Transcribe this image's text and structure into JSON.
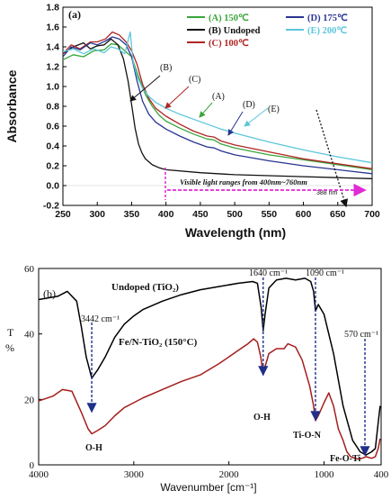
{
  "colors": {
    "A": "#3aa53a",
    "B": "#111111",
    "C": "#b02525",
    "D": "#2a3590",
    "E": "#5cc6dc",
    "undoped": "#000000",
    "fen": "#a51d1d",
    "marker": "#1f2f8a",
    "visible": "#e02ad5"
  },
  "chart_data": [
    {
      "type": "line",
      "panel_label": "(a)",
      "xlabel": "Wavelength (nm)",
      "ylabel": "Absorbance",
      "xlim": [
        250,
        700
      ],
      "ylim": [
        -0.2,
        1.8
      ],
      "xticks": [
        "250",
        "300",
        "350",
        "400",
        "450",
        "500",
        "550",
        "600",
        "650",
        "700"
      ],
      "yticks": [
        "-0.2",
        "0.0",
        "0.2",
        "0.4",
        "0.6",
        "0.8",
        "1.0",
        "1.2",
        "1.4",
        "1.6",
        "1.8"
      ],
      "legend_placement": "top-right",
      "series": [
        {
          "name": "(A) 150℃",
          "key": "A",
          "points": [
            [
              250,
              1.27
            ],
            [
              265,
              1.32
            ],
            [
              280,
              1.3
            ],
            [
              295,
              1.36
            ],
            [
              310,
              1.37
            ],
            [
              320,
              1.43
            ],
            [
              330,
              1.42
            ],
            [
              340,
              1.36
            ],
            [
              350,
              1.3
            ],
            [
              360,
              1.1
            ],
            [
              370,
              0.92
            ],
            [
              380,
              0.8
            ],
            [
              390,
              0.71
            ],
            [
              400,
              0.65
            ],
            [
              420,
              0.58
            ],
            [
              440,
              0.52
            ],
            [
              460,
              0.47
            ],
            [
              470,
              0.46
            ],
            [
              480,
              0.42
            ],
            [
              500,
              0.38
            ],
            [
              550,
              0.31
            ],
            [
              600,
              0.26
            ],
            [
              650,
              0.21
            ],
            [
              700,
              0.16
            ]
          ]
        },
        {
          "name": "(B) Undoped",
          "key": "B",
          "points": [
            [
              250,
              1.33
            ],
            [
              265,
              1.4
            ],
            [
              280,
              1.44
            ],
            [
              290,
              1.38
            ],
            [
              300,
              1.41
            ],
            [
              310,
              1.42
            ],
            [
              320,
              1.48
            ],
            [
              330,
              1.42
            ],
            [
              338,
              1.28
            ],
            [
              345,
              1.05
            ],
            [
              350,
              0.82
            ],
            [
              355,
              0.58
            ],
            [
              360,
              0.42
            ],
            [
              365,
              0.33
            ],
            [
              370,
              0.27
            ],
            [
              380,
              0.21
            ],
            [
              390,
              0.18
            ],
            [
              400,
              0.16
            ],
            [
              450,
              0.13
            ],
            [
              500,
              0.11
            ],
            [
              550,
              0.1
            ],
            [
              600,
              0.09
            ],
            [
              650,
              0.08
            ],
            [
              700,
              0.07
            ]
          ]
        },
        {
          "name": "(C) 100℃",
          "key": "C",
          "points": [
            [
              250,
              1.33
            ],
            [
              262,
              1.42
            ],
            [
              275,
              1.38
            ],
            [
              290,
              1.45
            ],
            [
              300,
              1.45
            ],
            [
              312,
              1.48
            ],
            [
              322,
              1.55
            ],
            [
              332,
              1.52
            ],
            [
              342,
              1.45
            ],
            [
              350,
              1.36
            ],
            [
              358,
              1.22
            ],
            [
              366,
              1.02
            ],
            [
              375,
              0.88
            ],
            [
              385,
              0.78
            ],
            [
              400,
              0.7
            ],
            [
              420,
              0.62
            ],
            [
              440,
              0.55
            ],
            [
              460,
              0.5
            ],
            [
              470,
              0.49
            ],
            [
              480,
              0.45
            ],
            [
              500,
              0.41
            ],
            [
              550,
              0.34
            ],
            [
              600,
              0.27
            ],
            [
              650,
              0.22
            ],
            [
              700,
              0.17
            ]
          ]
        },
        {
          "name": "(D) 175℃",
          "key": "D",
          "points": [
            [
              250,
              1.3
            ],
            [
              262,
              1.4
            ],
            [
              275,
              1.37
            ],
            [
              290,
              1.44
            ],
            [
              300,
              1.42
            ],
            [
              312,
              1.46
            ],
            [
              322,
              1.5
            ],
            [
              332,
              1.48
            ],
            [
              342,
              1.42
            ],
            [
              350,
              1.3
            ],
            [
              358,
              1.05
            ],
            [
              366,
              0.85
            ],
            [
              375,
              0.72
            ],
            [
              385,
              0.64
            ],
            [
              400,
              0.57
            ],
            [
              420,
              0.5
            ],
            [
              440,
              0.44
            ],
            [
              460,
              0.39
            ],
            [
              470,
              0.38
            ],
            [
              480,
              0.35
            ],
            [
              500,
              0.31
            ],
            [
              550,
              0.25
            ],
            [
              600,
              0.2
            ],
            [
              650,
              0.16
            ],
            [
              700,
              0.12
            ]
          ]
        },
        {
          "name": "(E) 200℃",
          "key": "E",
          "points": [
            [
              250,
              1.35
            ],
            [
              265,
              1.38
            ],
            [
              280,
              1.33
            ],
            [
              295,
              1.38
            ],
            [
              310,
              1.34
            ],
            [
              320,
              1.4
            ],
            [
              330,
              1.38
            ],
            [
              340,
              1.33
            ],
            [
              348,
              1.55
            ],
            [
              352,
              1.25
            ],
            [
              358,
              1.1
            ],
            [
              366,
              0.98
            ],
            [
              375,
              0.9
            ],
            [
              385,
              0.84
            ],
            [
              400,
              0.78
            ],
            [
              420,
              0.72
            ],
            [
              440,
              0.67
            ],
            [
              460,
              0.62
            ],
            [
              480,
              0.57
            ],
            [
              500,
              0.53
            ],
            [
              550,
              0.44
            ],
            [
              600,
              0.36
            ],
            [
              650,
              0.29
            ],
            [
              700,
              0.23
            ]
          ]
        }
      ],
      "annotations": [
        {
          "text": "(B)",
          "key": "B"
        },
        {
          "text": "(C)",
          "key": "C"
        },
        {
          "text": "(A)",
          "key": "A"
        },
        {
          "text": "(D)",
          "key": "D"
        },
        {
          "text": "(E)",
          "key": "E"
        },
        {
          "text": "388 nm"
        },
        {
          "text": "Visible light ranges from 400nm~760nm"
        }
      ]
    },
    {
      "type": "line",
      "panel_label": "(b)",
      "xlabel": "Wavenumber [cm⁻¹]",
      "ylabel": "T %",
      "xlim": [
        4000,
        400
      ],
      "ylim": [
        0,
        60
      ],
      "xticks": [
        "4000",
        "3000",
        "2000",
        "1000",
        "400"
      ],
      "yticks": [
        "0",
        "20",
        "40",
        "60"
      ],
      "series": [
        {
          "name": "Undoped (TiO₂)",
          "key": "undoped",
          "points": [
            [
              4000,
              50.5
            ],
            [
              3800,
              51.5
            ],
            [
              3700,
              53
            ],
            [
              3600,
              50
            ],
            [
              3550,
              42
            ],
            [
              3500,
              33
            ],
            [
              3442,
              26.5
            ],
            [
              3380,
              29
            ],
            [
              3300,
              33
            ],
            [
              3200,
              39
            ],
            [
              3100,
              43
            ],
            [
              3000,
              45.5
            ],
            [
              2900,
              47.5
            ],
            [
              2700,
              50
            ],
            [
              2500,
              52
            ],
            [
              2300,
              53.5
            ],
            [
              2100,
              54.5
            ],
            [
              1900,
              55.5
            ],
            [
              1750,
              56
            ],
            [
              1700,
              55.5
            ],
            [
              1660,
              48
            ],
            [
              1640,
              41
            ],
            [
              1620,
              46
            ],
            [
              1580,
              54
            ],
            [
              1500,
              56.5
            ],
            [
              1400,
              57
            ],
            [
              1300,
              56.5
            ],
            [
              1200,
              57
            ],
            [
              1140,
              56
            ],
            [
              1110,
              53
            ],
            [
              1090,
              47
            ],
            [
              1060,
              49
            ],
            [
              1000,
              46
            ],
            [
              900,
              34
            ],
            [
              800,
              18
            ],
            [
              700,
              7.5
            ],
            [
              620,
              4
            ],
            [
              560,
              3
            ],
            [
              500,
              4
            ],
            [
              460,
              5
            ],
            [
              430,
              13
            ],
            [
              410,
              18
            ]
          ]
        },
        {
          "name": "Fe/N-TiO₂ (150°C)",
          "key": "fen",
          "points": [
            [
              4000,
              19.5
            ],
            [
              3850,
              21
            ],
            [
              3750,
              23
            ],
            [
              3650,
              22.5
            ],
            [
              3550,
              16
            ],
            [
              3480,
              11
            ],
            [
              3442,
              9.5
            ],
            [
              3380,
              10.5
            ],
            [
              3300,
              12
            ],
            [
              3200,
              15
            ],
            [
              3100,
              17.5
            ],
            [
              3000,
              19
            ],
            [
              2900,
              20.5
            ],
            [
              2700,
              23
            ],
            [
              2500,
              25.5
            ],
            [
              2300,
              27.5
            ],
            [
              2100,
              31
            ],
            [
              1900,
              35
            ],
            [
              1800,
              37
            ],
            [
              1740,
              38.5
            ],
            [
              1700,
              37.5
            ],
            [
              1665,
              33
            ],
            [
              1640,
              27.5
            ],
            [
              1620,
              30
            ],
            [
              1580,
              34
            ],
            [
              1500,
              35.5
            ],
            [
              1420,
              35.5
            ],
            [
              1380,
              37
            ],
            [
              1300,
              36
            ],
            [
              1230,
              32
            ],
            [
              1150,
              24
            ],
            [
              1110,
              18
            ],
            [
              1090,
              13.5
            ],
            [
              1060,
              15
            ],
            [
              1000,
              19
            ],
            [
              950,
              22
            ],
            [
              900,
              18
            ],
            [
              850,
              11
            ],
            [
              800,
              7.5
            ],
            [
              760,
              4
            ],
            [
              720,
              2.5
            ],
            [
              650,
              1.8
            ],
            [
              600,
              2
            ],
            [
              560,
              2.5
            ],
            [
              500,
              2
            ],
            [
              460,
              2.5
            ],
            [
              430,
              5
            ],
            [
              410,
              8
            ]
          ]
        }
      ],
      "annotations": [
        {
          "text": "3442 cm⁻¹"
        },
        {
          "text": "1640 cm⁻¹"
        },
        {
          "text": "1090 cm⁻¹"
        },
        {
          "text": "570 cm⁻¹"
        },
        {
          "text": "O-H"
        },
        {
          "text": "O-H"
        },
        {
          "text": "Ti-O-N"
        },
        {
          "text": "Fe-O-Ti"
        }
      ]
    }
  ]
}
